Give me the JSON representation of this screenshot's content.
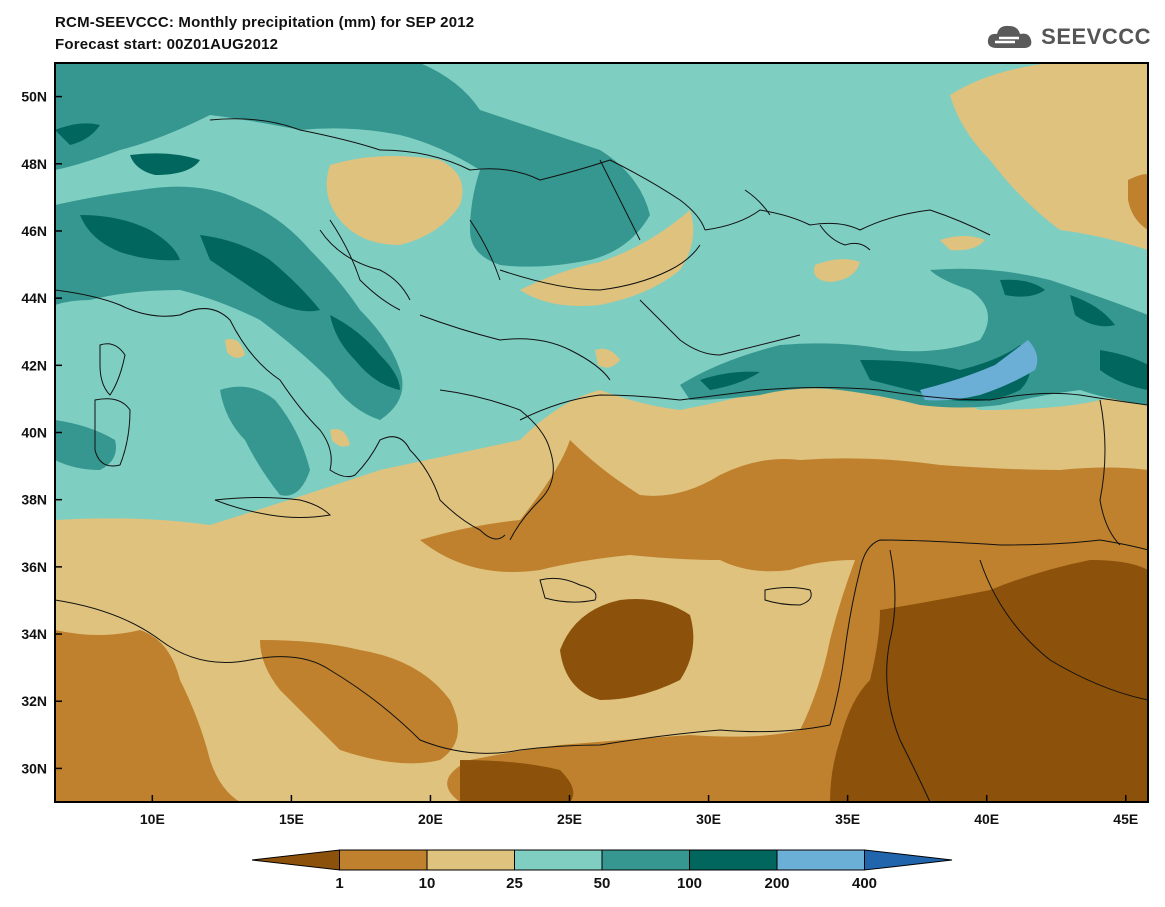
{
  "header": {
    "title": "RCM-SEEVCCC: Monthly precipitation (mm) for SEP 2012",
    "subtitle": "Forecast start: 00Z01AUG2012",
    "logo_text": "SEEVCCC",
    "logo_icon": "cloud-logo-icon"
  },
  "map": {
    "lon_range": [
      6.5,
      45.8
    ],
    "lat_range": [
      29.0,
      51.0
    ],
    "lon_ticks": [
      {
        "value": 10,
        "label": "10E"
      },
      {
        "value": 15,
        "label": "15E"
      },
      {
        "value": 20,
        "label": "20E"
      },
      {
        "value": 25,
        "label": "25E"
      },
      {
        "value": 30,
        "label": "30E"
      },
      {
        "value": 35,
        "label": "35E"
      },
      {
        "value": 40,
        "label": "40E"
      },
      {
        "value": 45,
        "label": "45E"
      }
    ],
    "lat_ticks": [
      {
        "value": 30,
        "label": "30N"
      },
      {
        "value": 32,
        "label": "32N"
      },
      {
        "value": 34,
        "label": "34N"
      },
      {
        "value": 36,
        "label": "36N"
      },
      {
        "value": 38,
        "label": "38N"
      },
      {
        "value": 40,
        "label": "40N"
      },
      {
        "value": 42,
        "label": "42N"
      },
      {
        "value": 44,
        "label": "44N"
      },
      {
        "value": 46,
        "label": "46N"
      },
      {
        "value": 48,
        "label": "48N"
      },
      {
        "value": 50,
        "label": "50N"
      }
    ],
    "background_class_color": "#7fcec2"
  },
  "colorbar": {
    "unit": "mm",
    "bins": [
      {
        "range": "<1",
        "color": "#8c510a"
      },
      {
        "range": "1-10",
        "color": "#bf812d"
      },
      {
        "range": "10-25",
        "color": "#dfc27d"
      },
      {
        "range": "25-50",
        "color": "#80cdc1"
      },
      {
        "range": "50-100",
        "color": "#35978f"
      },
      {
        "range": "100-200",
        "color": "#01665e"
      },
      {
        "range": "200-400",
        "color": "#6baed6"
      },
      {
        "range": ">400",
        "color": "#2166ac"
      }
    ],
    "labels": [
      "1",
      "10",
      "25",
      "50",
      "100",
      "200",
      "400"
    ]
  }
}
